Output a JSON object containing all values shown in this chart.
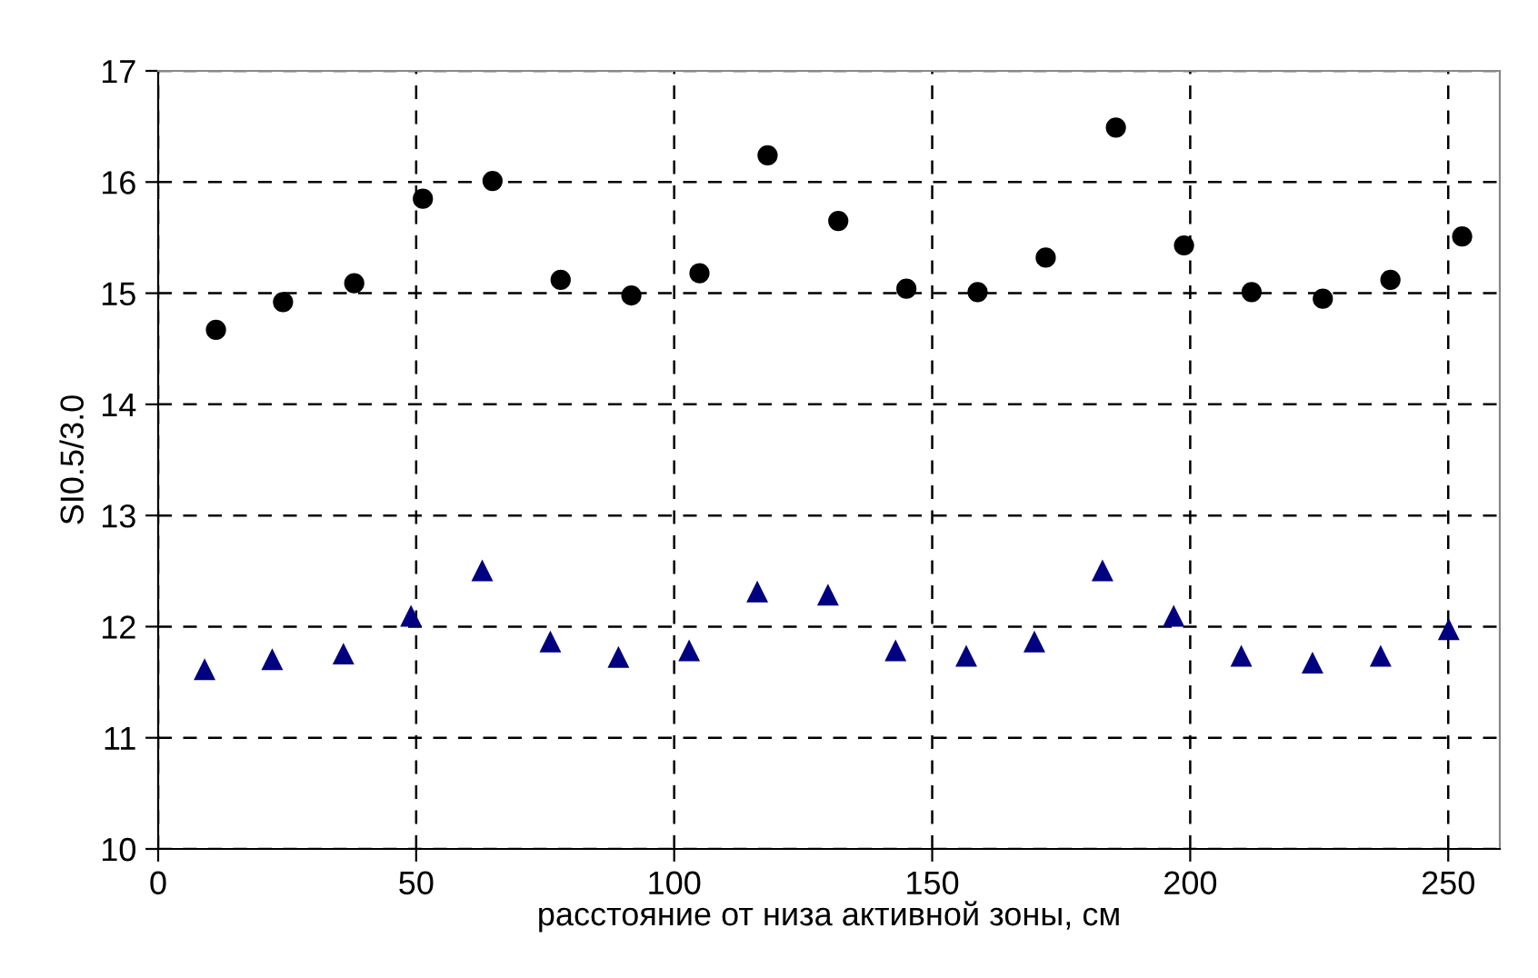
{
  "chart_data": {
    "type": "scatter",
    "xlabel": "расстояние от низа активной зоны, см",
    "ylabel": "SI0.5/3.0",
    "xlim": [
      0,
      260
    ],
    "xticks": [
      0,
      50,
      100,
      150,
      200,
      250
    ],
    "ylim": [
      10,
      17
    ],
    "yticks": [
      10,
      11,
      12,
      13,
      14,
      15,
      16,
      17
    ],
    "grid": true,
    "legend": false,
    "series": [
      {
        "color": "#000000",
        "marker": "circle",
        "x": [
          11.2,
          24.2,
          38.0,
          51.3,
          64.8,
          78.0,
          91.7,
          104.9,
          118.1,
          131.8,
          145.0,
          158.8,
          172.0,
          185.6,
          198.8,
          211.9,
          225.7,
          238.8,
          252.7
        ],
        "values": [
          14.67,
          14.92,
          15.09,
          15.85,
          16.01,
          15.12,
          14.98,
          15.18,
          16.24,
          15.65,
          15.04,
          15.01,
          15.32,
          16.49,
          15.43,
          15.01,
          14.95,
          15.12,
          15.51
        ]
      },
      {
        "color": "#000080",
        "marker": "triangle",
        "x": [
          9.0,
          22.1,
          35.9,
          49.0,
          62.8,
          76.0,
          89.2,
          102.9,
          116.1,
          129.8,
          142.9,
          156.6,
          169.8,
          183.0,
          196.8,
          209.9,
          223.7,
          236.9,
          250.1
        ],
        "values": [
          11.61,
          11.7,
          11.75,
          12.09,
          12.5,
          11.86,
          11.72,
          11.78,
          12.31,
          12.28,
          11.78,
          11.73,
          11.86,
          12.5,
          12.09,
          11.73,
          11.67,
          11.73,
          11.97
        ]
      }
    ]
  }
}
